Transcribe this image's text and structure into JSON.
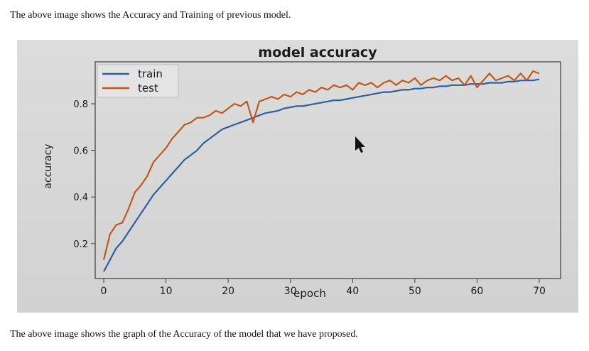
{
  "captions": {
    "top": "The above image shows the Accuracy and Training of previous model.",
    "bottom": "The above image shows the graph of the Accuracy of the model that we have proposed."
  },
  "chart_data": {
    "type": "line",
    "title": "model accuracy",
    "xlabel": "epoch",
    "ylabel": "accuracy",
    "xlim": [
      0,
      70
    ],
    "ylim": [
      0.05,
      0.98
    ],
    "xticks": [
      0,
      10,
      20,
      30,
      40,
      50,
      60,
      70
    ],
    "yticks": [
      0.2,
      0.4,
      0.6,
      0.8
    ],
    "grid": false,
    "legend_position": "top-left",
    "series": [
      {
        "name": "train",
        "color": "#2e5f9e",
        "x": [
          0,
          1,
          2,
          3,
          4,
          5,
          6,
          7,
          8,
          9,
          10,
          11,
          12,
          13,
          14,
          15,
          16,
          17,
          18,
          19,
          20,
          21,
          22,
          23,
          24,
          25,
          26,
          27,
          28,
          29,
          30,
          31,
          32,
          33,
          34,
          35,
          36,
          37,
          38,
          39,
          40,
          41,
          42,
          43,
          44,
          45,
          46,
          47,
          48,
          49,
          50,
          51,
          52,
          53,
          54,
          55,
          56,
          57,
          58,
          59,
          60,
          61,
          62,
          63,
          64,
          65,
          66,
          67,
          68,
          69,
          70
        ],
        "values": [
          0.08,
          0.13,
          0.18,
          0.21,
          0.25,
          0.29,
          0.33,
          0.37,
          0.41,
          0.44,
          0.47,
          0.5,
          0.53,
          0.56,
          0.58,
          0.6,
          0.63,
          0.65,
          0.67,
          0.69,
          0.7,
          0.71,
          0.72,
          0.73,
          0.74,
          0.75,
          0.76,
          0.765,
          0.77,
          0.78,
          0.785,
          0.79,
          0.79,
          0.795,
          0.8,
          0.805,
          0.81,
          0.815,
          0.815,
          0.82,
          0.825,
          0.83,
          0.835,
          0.84,
          0.845,
          0.85,
          0.85,
          0.855,
          0.86,
          0.86,
          0.865,
          0.865,
          0.87,
          0.87,
          0.875,
          0.875,
          0.88,
          0.88,
          0.88,
          0.885,
          0.885,
          0.885,
          0.89,
          0.89,
          0.89,
          0.895,
          0.895,
          0.9,
          0.9,
          0.9,
          0.905
        ]
      },
      {
        "name": "test",
        "color": "#c2571c",
        "x": [
          0,
          1,
          2,
          3,
          4,
          5,
          6,
          7,
          8,
          9,
          10,
          11,
          12,
          13,
          14,
          15,
          16,
          17,
          18,
          19,
          20,
          21,
          22,
          23,
          24,
          25,
          26,
          27,
          28,
          29,
          30,
          31,
          32,
          33,
          34,
          35,
          36,
          37,
          38,
          39,
          40,
          41,
          42,
          43,
          44,
          45,
          46,
          47,
          48,
          49,
          50,
          51,
          52,
          53,
          54,
          55,
          56,
          57,
          58,
          59,
          60,
          61,
          62,
          63,
          64,
          65,
          66,
          67,
          68,
          69,
          70
        ],
        "values": [
          0.13,
          0.24,
          0.28,
          0.29,
          0.35,
          0.42,
          0.45,
          0.49,
          0.55,
          0.58,
          0.61,
          0.65,
          0.68,
          0.71,
          0.72,
          0.74,
          0.74,
          0.75,
          0.77,
          0.76,
          0.78,
          0.8,
          0.79,
          0.81,
          0.72,
          0.81,
          0.82,
          0.83,
          0.82,
          0.84,
          0.83,
          0.85,
          0.84,
          0.86,
          0.85,
          0.87,
          0.86,
          0.88,
          0.87,
          0.88,
          0.86,
          0.89,
          0.88,
          0.89,
          0.87,
          0.89,
          0.9,
          0.88,
          0.9,
          0.89,
          0.91,
          0.88,
          0.9,
          0.91,
          0.9,
          0.92,
          0.9,
          0.91,
          0.88,
          0.92,
          0.87,
          0.9,
          0.93,
          0.9,
          0.91,
          0.92,
          0.9,
          0.93,
          0.9,
          0.94,
          0.93
        ]
      }
    ]
  }
}
